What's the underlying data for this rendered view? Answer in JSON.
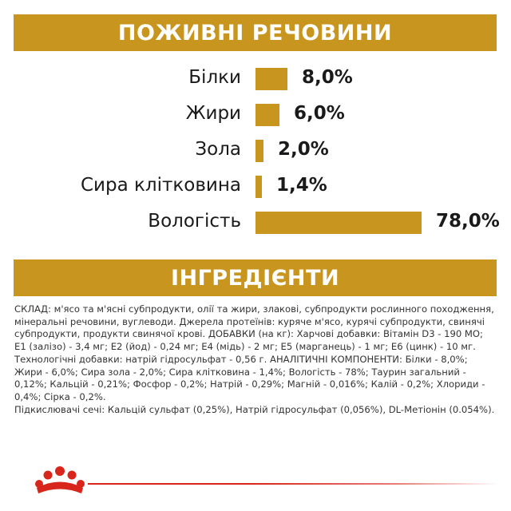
{
  "nutrients": {
    "title": "ПОЖИВНІ РЕЧОВИНИ",
    "rows": [
      {
        "label": "Білки",
        "value": "8,0%",
        "pct": 8.0
      },
      {
        "label": "Жири",
        "value": "6,0%",
        "pct": 6.0
      },
      {
        "label": "Зола",
        "value": "2,0%",
        "pct": 2.0
      },
      {
        "label": "Сира клітковина",
        "value": "1,4%",
        "pct": 1.4
      },
      {
        "label": "Вологість",
        "value": "78,0%",
        "pct": 78.0
      }
    ]
  },
  "ingredients": {
    "title": "ІНГРЕДІЄНТИ",
    "composition": "СКЛАД: м'ясо та м'ясні субпродукти, олії та жири, злакові, субпродукти  рослинного походження, мінеральні речовини, вуглеводи. Джерела протеїнів: куряче м'ясо, курячі субпродукти, свинячі субпродукти, продукти свинячої крові. ДОБАВКИ (на кг): Харчові добавки: Вітамін D3 - 190 МО; E1 (залізо) - 3,4 мг; E2 (йод) - 0,24 мг; E4 (мідь) - 2 мг; E5 (марганець) - 1 мг; E6 (цинк) - 10 мг. Технологічні добавки: натрій гідросульфат - 0,56 г. АНАЛІТИЧНІ КОМПОНЕНТИ: Білки - 8,0%; Жири - 6,0%; Сира зола - 2,0%; Сира клітковина - 1,4%; Вологість - 78%; Таурин загальний - 0,12%; Кальцій - 0,21%; Фосфор - 0,2%; Натрій - 0,29%; Магній - 0,016%; Калій - 0,2%; Хлориди - 0,4%; Сірка - 0,2%.",
    "urine": "Підкислювачі сечі: Кальцій сульфат (0,25%), Натрій гідросульфат (0,056%), DL-Метіонін (0.054%)."
  },
  "colors": {
    "accent": "#c8961e",
    "logo_red": "#d9261c"
  },
  "icons": {
    "logo": "crown-icon"
  }
}
